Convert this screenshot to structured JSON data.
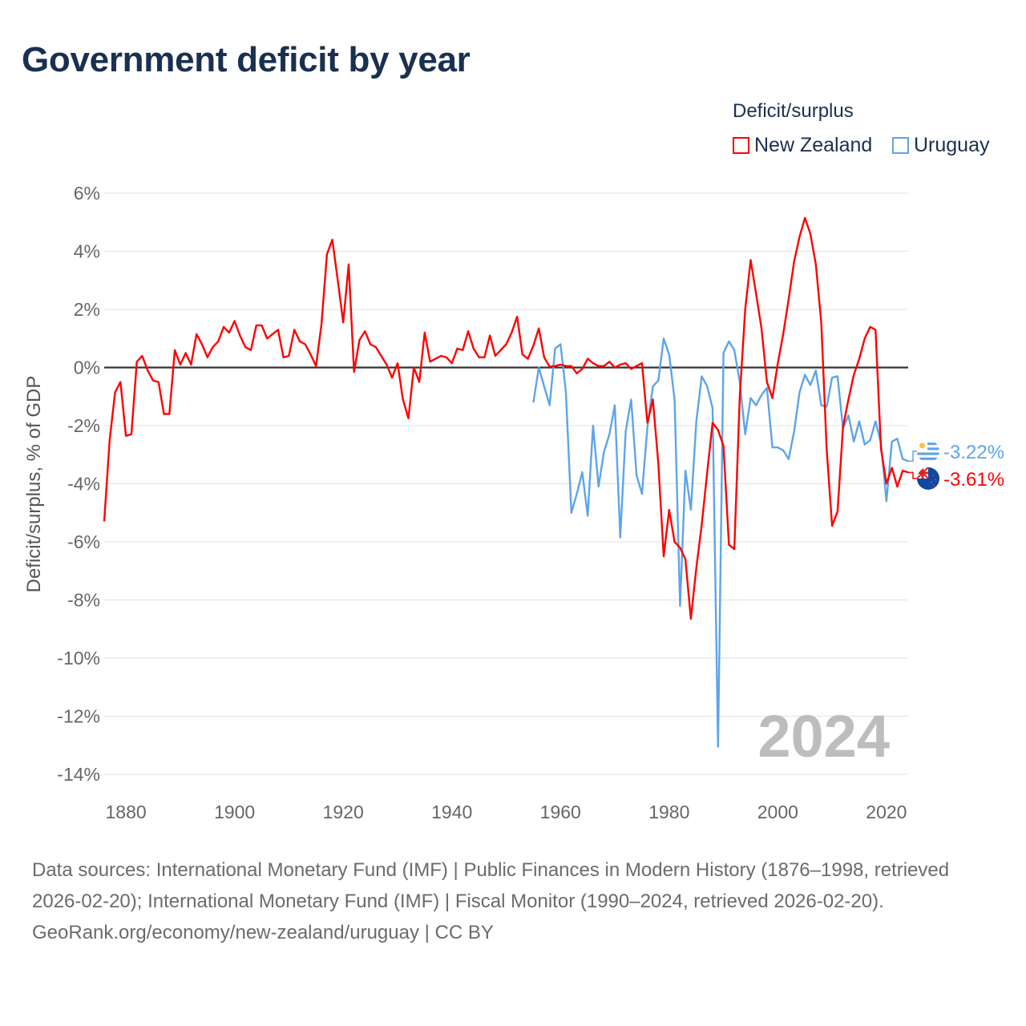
{
  "chart_data": {
    "type": "line",
    "title": "Government deficit by year",
    "ylabel": "Deficit/surplus, % of GDP",
    "xlabel": "",
    "xlim": [
      1876,
      2024
    ],
    "ylim": [
      -14,
      6
    ],
    "x_ticks": [
      1880,
      1900,
      1920,
      1940,
      1960,
      1980,
      2000,
      2020
    ],
    "y_ticks": [
      6,
      4,
      2,
      0,
      -2,
      -4,
      -6,
      -8,
      -10,
      -12,
      -14
    ],
    "y_tick_labels": [
      "6%",
      "4%",
      "2%",
      "0%",
      "-2%",
      "-4%",
      "-6%",
      "-8%",
      "-10%",
      "-12%",
      "-14%"
    ],
    "grid": true,
    "legend_title": "Deficit/surplus",
    "legend_position": "top-right",
    "year_watermark": "2024",
    "series": [
      {
        "name": "New Zealand",
        "color": "#ff0000",
        "end_label": "-3.61%",
        "flag": "new-zealand",
        "points": [
          [
            1876,
            -5.3
          ],
          [
            1877,
            -2.5
          ],
          [
            1878,
            -0.85
          ],
          [
            1879,
            -0.5
          ],
          [
            1880,
            -2.35
          ],
          [
            1881,
            -2.3
          ],
          [
            1882,
            0.2
          ],
          [
            1883,
            0.4
          ],
          [
            1884,
            -0.1
          ],
          [
            1885,
            -0.45
          ],
          [
            1886,
            -0.5
          ],
          [
            1887,
            -1.6
          ],
          [
            1888,
            -1.6
          ],
          [
            1889,
            0.6
          ],
          [
            1890,
            0.1
          ],
          [
            1891,
            0.5
          ],
          [
            1892,
            0.1
          ],
          [
            1893,
            1.15
          ],
          [
            1894,
            0.8
          ],
          [
            1895,
            0.35
          ],
          [
            1896,
            0.7
          ],
          [
            1897,
            0.9
          ],
          [
            1898,
            1.4
          ],
          [
            1899,
            1.2
          ],
          [
            1900,
            1.6
          ],
          [
            1901,
            1.1
          ],
          [
            1902,
            0.7
          ],
          [
            1903,
            0.6
          ],
          [
            1904,
            1.45
          ],
          [
            1905,
            1.45
          ],
          [
            1906,
            1.0
          ],
          [
            1907,
            1.15
          ],
          [
            1908,
            1.3
          ],
          [
            1909,
            0.35
          ],
          [
            1910,
            0.4
          ],
          [
            1911,
            1.3
          ],
          [
            1912,
            0.9
          ],
          [
            1913,
            0.8
          ],
          [
            1914,
            0.45
          ],
          [
            1915,
            0.05
          ],
          [
            1916,
            1.5
          ],
          [
            1917,
            3.9
          ],
          [
            1918,
            4.4
          ],
          [
            1919,
            3.0
          ],
          [
            1920,
            1.55
          ],
          [
            1921,
            3.55
          ],
          [
            1922,
            -0.15
          ],
          [
            1923,
            0.95
          ],
          [
            1924,
            1.25
          ],
          [
            1925,
            0.8
          ],
          [
            1926,
            0.7
          ],
          [
            1927,
            0.4
          ],
          [
            1928,
            0.1
          ],
          [
            1929,
            -0.35
          ],
          [
            1930,
            0.15
          ],
          [
            1931,
            -1.1
          ],
          [
            1932,
            -1.75
          ],
          [
            1933,
            0.0
          ],
          [
            1934,
            -0.5
          ],
          [
            1935,
            1.2
          ],
          [
            1936,
            0.2
          ],
          [
            1937,
            0.3
          ],
          [
            1938,
            0.4
          ],
          [
            1939,
            0.35
          ],
          [
            1940,
            0.15
          ],
          [
            1941,
            0.65
          ],
          [
            1942,
            0.6
          ],
          [
            1943,
            1.25
          ],
          [
            1944,
            0.65
          ],
          [
            1945,
            0.35
          ],
          [
            1946,
            0.35
          ],
          [
            1947,
            1.1
          ],
          [
            1948,
            0.4
          ],
          [
            1949,
            0.6
          ],
          [
            1950,
            0.8
          ],
          [
            1951,
            1.2
          ],
          [
            1952,
            1.75
          ],
          [
            1953,
            0.45
          ],
          [
            1954,
            0.3
          ],
          [
            1955,
            0.75
          ],
          [
            1956,
            1.35
          ],
          [
            1957,
            0.35
          ],
          [
            1958,
            0.03
          ],
          [
            1959,
            0.05
          ],
          [
            1960,
            0.1
          ],
          [
            1961,
            0.05
          ],
          [
            1962,
            0.05
          ],
          [
            1963,
            -0.2
          ],
          [
            1964,
            -0.05
          ],
          [
            1965,
            0.3
          ],
          [
            1966,
            0.15
          ],
          [
            1967,
            0.05
          ],
          [
            1968,
            0.05
          ],
          [
            1969,
            0.2
          ],
          [
            1970,
            0.0
          ],
          [
            1971,
            0.1
          ],
          [
            1972,
            0.15
          ],
          [
            1973,
            -0.05
          ],
          [
            1974,
            0.05
          ],
          [
            1975,
            0.15
          ],
          [
            1976,
            -1.9
          ],
          [
            1977,
            -1.1
          ],
          [
            1978,
            -3.3
          ],
          [
            1979,
            -6.5
          ],
          [
            1980,
            -4.9
          ],
          [
            1981,
            -6.0
          ],
          [
            1982,
            -6.2
          ],
          [
            1983,
            -6.6
          ],
          [
            1984,
            -8.65
          ],
          [
            1985,
            -6.9
          ],
          [
            1986,
            -5.4
          ],
          [
            1987,
            -3.6
          ],
          [
            1988,
            -1.9
          ],
          [
            1989,
            -2.15
          ],
          [
            1990,
            -2.7
          ],
          [
            1991,
            -6.1
          ],
          [
            1992,
            -6.25
          ],
          [
            1993,
            -1.0
          ],
          [
            1994,
            2.0
          ],
          [
            1995,
            3.7
          ],
          [
            1996,
            2.55
          ],
          [
            1997,
            1.35
          ],
          [
            1998,
            -0.5
          ],
          [
            1999,
            -1.05
          ],
          [
            2000,
            0.15
          ],
          [
            2001,
            1.15
          ],
          [
            2002,
            2.35
          ],
          [
            2003,
            3.65
          ],
          [
            2004,
            4.5
          ],
          [
            2005,
            5.15
          ],
          [
            2006,
            4.6
          ],
          [
            2007,
            3.55
          ],
          [
            2008,
            1.55
          ],
          [
            2009,
            -2.8
          ],
          [
            2010,
            -5.45
          ],
          [
            2011,
            -4.95
          ],
          [
            2012,
            -2.05
          ],
          [
            2013,
            -1.1
          ],
          [
            2014,
            -0.25
          ],
          [
            2015,
            0.3
          ],
          [
            2016,
            1.0
          ],
          [
            2017,
            1.4
          ],
          [
            2018,
            1.3
          ],
          [
            2019,
            -2.8
          ],
          [
            2020,
            -4.0
          ],
          [
            2021,
            -3.45
          ],
          [
            2022,
            -4.1
          ],
          [
            2023,
            -3.55
          ],
          [
            2024,
            -3.61
          ]
        ]
      },
      {
        "name": "Uruguay",
        "color": "#5ea4ea",
        "end_label": "-3.22%",
        "flag": "uruguay",
        "points": [
          [
            1955,
            -1.2
          ],
          [
            1956,
            0.0
          ],
          [
            1957,
            -0.65
          ],
          [
            1958,
            -1.3
          ],
          [
            1959,
            0.65
          ],
          [
            1960,
            0.8
          ],
          [
            1961,
            -0.85
          ],
          [
            1962,
            -5.0
          ],
          [
            1963,
            -4.35
          ],
          [
            1964,
            -3.6
          ],
          [
            1965,
            -5.1
          ],
          [
            1966,
            -2.0
          ],
          [
            1967,
            -4.1
          ],
          [
            1968,
            -2.9
          ],
          [
            1969,
            -2.3
          ],
          [
            1970,
            -1.3
          ],
          [
            1971,
            -5.85
          ],
          [
            1972,
            -2.2
          ],
          [
            1973,
            -1.1
          ],
          [
            1974,
            -3.7
          ],
          [
            1975,
            -4.35
          ],
          [
            1976,
            -2.05
          ],
          [
            1977,
            -0.65
          ],
          [
            1978,
            -0.45
          ],
          [
            1979,
            1.0
          ],
          [
            1980,
            0.45
          ],
          [
            1981,
            -1.1
          ],
          [
            1982,
            -8.2
          ],
          [
            1983,
            -3.55
          ],
          [
            1984,
            -4.9
          ],
          [
            1985,
            -1.85
          ],
          [
            1986,
            -0.3
          ],
          [
            1987,
            -0.65
          ],
          [
            1988,
            -1.4
          ],
          [
            1989,
            -13.05
          ],
          [
            1990,
            0.5
          ],
          [
            1991,
            0.9
          ],
          [
            1992,
            0.6
          ],
          [
            1993,
            -0.5
          ],
          [
            1994,
            -2.3
          ],
          [
            1995,
            -1.05
          ],
          [
            1996,
            -1.3
          ],
          [
            1997,
            -0.95
          ],
          [
            1998,
            -0.7
          ],
          [
            1999,
            -2.75
          ],
          [
            2000,
            -2.75
          ],
          [
            2001,
            -2.85
          ],
          [
            2002,
            -3.15
          ],
          [
            2003,
            -2.2
          ],
          [
            2004,
            -0.85
          ],
          [
            2005,
            -0.25
          ],
          [
            2006,
            -0.6
          ],
          [
            2007,
            -0.1
          ],
          [
            2008,
            -1.3
          ],
          [
            2009,
            -1.35
          ],
          [
            2010,
            -0.35
          ],
          [
            2011,
            -0.3
          ],
          [
            2012,
            -2.1
          ],
          [
            2013,
            -1.65
          ],
          [
            2014,
            -2.55
          ],
          [
            2015,
            -1.85
          ],
          [
            2016,
            -2.65
          ],
          [
            2017,
            -2.5
          ],
          [
            2018,
            -1.85
          ],
          [
            2019,
            -2.6
          ],
          [
            2020,
            -4.6
          ],
          [
            2021,
            -2.55
          ],
          [
            2022,
            -2.45
          ],
          [
            2023,
            -3.15
          ],
          [
            2024,
            -3.22
          ]
        ]
      }
    ]
  },
  "footer": {
    "sources": "Data sources: International Monetary Fund (IMF) | Public Finances in Modern History (1876–1998, retrieved 2026-02-20); International Monetary Fund (IMF) | Fiscal Monitor (1990–2024, retrieved 2026-02-20).",
    "credit": "GeoRank.org/economy/new-zealand/uruguay | CC BY"
  }
}
